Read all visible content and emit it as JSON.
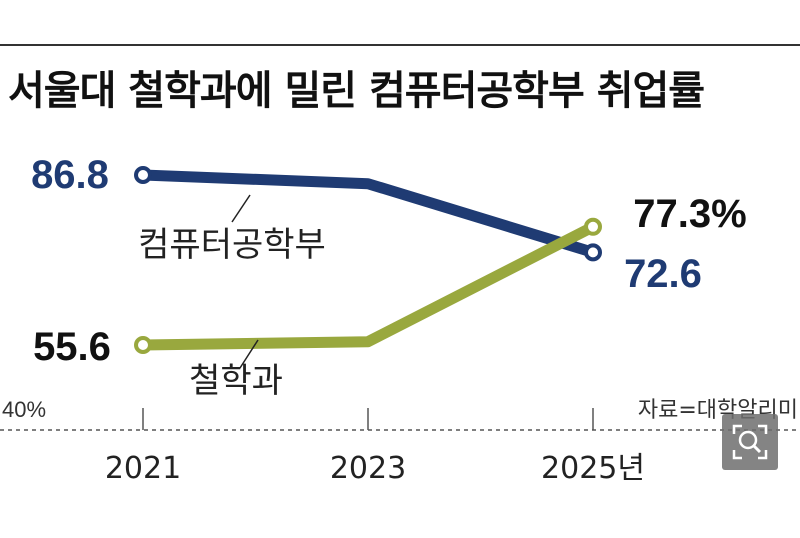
{
  "title": "서울대 철학과에 밀린 컴퓨터공학부 취업률",
  "source": "자료=대학알리미",
  "colors": {
    "cs": "#1f3b73",
    "philosophy": "#99a83e",
    "text": "#111111"
  },
  "zoom_icon": "zoom-search-icon",
  "chart_data": {
    "type": "line",
    "title": "서울대 철학과에 밀린 컴퓨터공학부 취업률",
    "x": [
      "2021",
      "2023",
      "2025년"
    ],
    "ylim": [
      40,
      95
    ],
    "baseline_label": "40%",
    "grid": false,
    "series": [
      {
        "name": "컴퓨터공학부",
        "values": [
          86.8,
          85.2,
          72.6
        ],
        "labels": [
          "86.8",
          "",
          "72.6"
        ],
        "color": "#1f3b73"
      },
      {
        "name": "철학과",
        "values": [
          55.6,
          56.2,
          77.3
        ],
        "labels": [
          "55.6",
          "",
          "77.3%"
        ],
        "color": "#99a83e"
      }
    ]
  }
}
